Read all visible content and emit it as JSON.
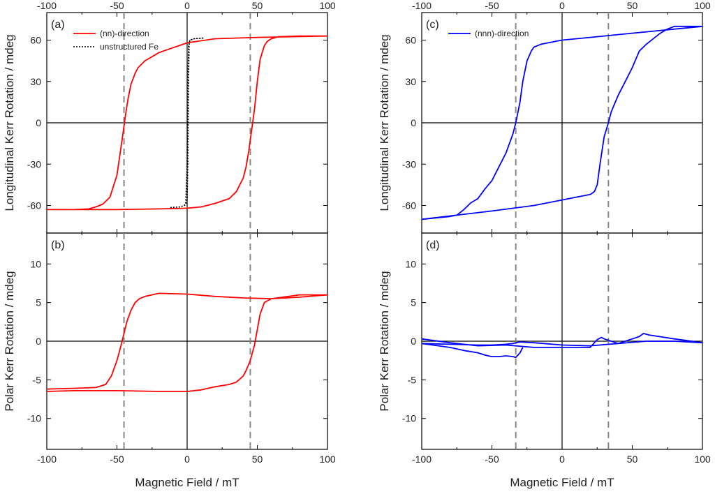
{
  "figure": {
    "xlabel": "Magnetic Field / mT"
  },
  "chart_data": [
    {
      "panel": "(a)",
      "type": "line",
      "xlabel": "Magnetic Field / mT",
      "ylabel": "Longitudinal Kerr Rotation / mdeg",
      "xlim": [
        -100,
        100
      ],
      "ylim": [
        -80,
        80
      ],
      "xticks": [
        -100,
        -50,
        0,
        50,
        100
      ],
      "yticks": [
        -60,
        -30,
        0,
        30,
        60
      ],
      "top_ticks": true,
      "zero_lines": true,
      "vlines": [
        -45,
        45
      ],
      "legend": {
        "position": "top-left"
      },
      "series": [
        {
          "name": "(nn)-direction",
          "color": "#ff0000",
          "style": "solid",
          "x": [
            -100,
            -80,
            -70,
            -65,
            -60,
            -55,
            -50,
            -46,
            -44,
            -42,
            -40,
            -37,
            -35,
            -30,
            -20,
            0,
            20,
            50,
            100,
            80,
            65,
            60,
            57,
            55,
            52,
            50,
            48,
            46,
            44,
            42,
            40,
            35,
            30,
            20,
            10,
            0,
            -20,
            -50,
            -100
          ],
          "y": [
            -63,
            -63,
            -62.5,
            -61,
            -59,
            -54,
            -38,
            -10,
            5,
            18,
            28,
            36,
            40,
            45,
            51,
            58,
            61,
            62,
            63,
            63,
            62.5,
            61,
            59,
            56,
            46,
            30,
            10,
            -5,
            -20,
            -32,
            -40,
            -50,
            -55,
            -58.5,
            -61,
            -62,
            -62.5,
            -63,
            -63
          ]
        },
        {
          "name": "unstructured Fe",
          "color": "#000000",
          "style": "dotted",
          "x": [
            -12,
            -5,
            -2,
            -1,
            0,
            0.5,
            1,
            2,
            5,
            12,
            5,
            2,
            1.5,
            1,
            0.5,
            0,
            -1,
            -2,
            -5,
            -12
          ],
          "y": [
            -61.5,
            -61,
            -60,
            -58,
            -30,
            30,
            56,
            60,
            61,
            61.5,
            61,
            60,
            58,
            30,
            -30,
            -56,
            -59,
            -60,
            -61,
            -61.5
          ]
        }
      ]
    },
    {
      "panel": "(b)",
      "type": "line",
      "xlabel": "Magnetic Field / mT",
      "ylabel": "Polar Kerr Rotation / mdeg",
      "xlim": [
        -100,
        100
      ],
      "ylim": [
        -14,
        14
      ],
      "xticks": [
        -100,
        -50,
        0,
        50,
        100
      ],
      "yticks": [
        -10,
        -5,
        0,
        5,
        10
      ],
      "zero_lines": true,
      "vlines": [
        -45,
        45
      ],
      "series": [
        {
          "name": "(nn)-direction",
          "color": "#ff0000",
          "style": "solid",
          "x": [
            -100,
            -80,
            -65,
            -58,
            -54,
            -50,
            -47,
            -45,
            -43,
            -40,
            -37,
            -34,
            -30,
            -20,
            0,
            20,
            40,
            60,
            80,
            100,
            80,
            60,
            55,
            52,
            50,
            48,
            45,
            42,
            40,
            35,
            30,
            20,
            10,
            0,
            -20,
            -50,
            -80,
            -100
          ],
          "y": [
            -6.2,
            -6.1,
            -6,
            -5.6,
            -4.5,
            -2.5,
            -0.5,
            1,
            2.5,
            4,
            5,
            5.5,
            5.8,
            6.2,
            6.1,
            5.8,
            5.6,
            5.5,
            5.7,
            6,
            6,
            5.5,
            5,
            3.5,
            1.5,
            -0.5,
            -2.5,
            -3.8,
            -4.5,
            -5.3,
            -5.6,
            -5.9,
            -6.3,
            -6.5,
            -6.5,
            -6.4,
            -6.4,
            -6.5
          ]
        }
      ]
    },
    {
      "panel": "(c)",
      "type": "line",
      "xlabel": "Magnetic Field / mT",
      "ylabel": "Longitudinal Kerr Rotation / mdeg",
      "xlim": [
        -100,
        100
      ],
      "ylim": [
        -80,
        80
      ],
      "xticks": [
        -100,
        -50,
        0,
        50,
        100
      ],
      "yticks": [
        -60,
        -30,
        0,
        30,
        60
      ],
      "top_ticks": true,
      "zero_lines": true,
      "vlines": [
        -33,
        33
      ],
      "legend": {
        "position": "top-left"
      },
      "series": [
        {
          "name": "(nnn)-direction",
          "color": "#0000ff",
          "style": "solid",
          "x": [
            -100,
            -90,
            -80,
            -75,
            -70,
            -65,
            -60,
            -55,
            -50,
            -45,
            -40,
            -35,
            -33,
            -30,
            -28,
            -25,
            -22,
            -20,
            -15,
            -10,
            0,
            20,
            50,
            100,
            80,
            75,
            70,
            60,
            55,
            50,
            45,
            40,
            35,
            33,
            30,
            27,
            25,
            23,
            20,
            10,
            0,
            -20,
            -50,
            -100
          ],
          "y": [
            -70,
            -69,
            -68,
            -67,
            -63,
            -58,
            -55,
            -48,
            -42,
            -32,
            -22,
            -8,
            0,
            15,
            30,
            45,
            52,
            55,
            57,
            58,
            60,
            62,
            65,
            70,
            70,
            68,
            65,
            57,
            52,
            40,
            30,
            20,
            8,
            0,
            -10,
            -30,
            -45,
            -50,
            -52,
            -54,
            -56,
            -60,
            -64,
            -70
          ]
        }
      ]
    },
    {
      "panel": "(d)",
      "type": "line",
      "xlabel": "Magnetic Field / mT",
      "ylabel": "Polar Kerr Rotation / mdeg",
      "xlim": [
        -100,
        100
      ],
      "ylim": [
        -14,
        14
      ],
      "xticks": [
        -100,
        -50,
        0,
        50,
        100
      ],
      "yticks": [
        -10,
        -5,
        0,
        5,
        10
      ],
      "zero_lines": true,
      "vlines": [
        -33,
        33
      ],
      "series": [
        {
          "name": "(nnn)-direction",
          "color": "#0000ff",
          "style": "solid",
          "x": [
            -100,
            -80,
            -60,
            -50,
            -40,
            -35,
            -33,
            -30,
            -20,
            0,
            20,
            40,
            60,
            80,
            100,
            80,
            62,
            58,
            55,
            50,
            40,
            30,
            28,
            25,
            20,
            0,
            -20,
            -40,
            -60,
            -80,
            -100
          ],
          "y": [
            -0.3,
            -0.4,
            -0.5,
            -0.5,
            -0.4,
            -0.3,
            -0.2,
            -0.1,
            -0.2,
            -0.5,
            -0.6,
            -0.3,
            0,
            0,
            -0.2,
            0.3,
            0.8,
            1,
            0.6,
            0.3,
            -0.3,
            0.3,
            0.5,
            0.2,
            -0.8,
            -0.8,
            -0.8,
            -0.5,
            -0.6,
            -0.2,
            0.3
          ]
        },
        {
          "name": "(nnn)-direction",
          "color": "#0000ff",
          "style": "solid",
          "x": [
            -100,
            -80,
            -70,
            -60,
            -55,
            -50,
            -45,
            -40,
            -35,
            -33,
            -30,
            -28
          ],
          "y": [
            -0.3,
            -0.8,
            -1.2,
            -1.5,
            -1.8,
            -2,
            -2,
            -1.9,
            -2,
            -2.1,
            -1.5,
            -0.8
          ]
        }
      ]
    }
  ]
}
